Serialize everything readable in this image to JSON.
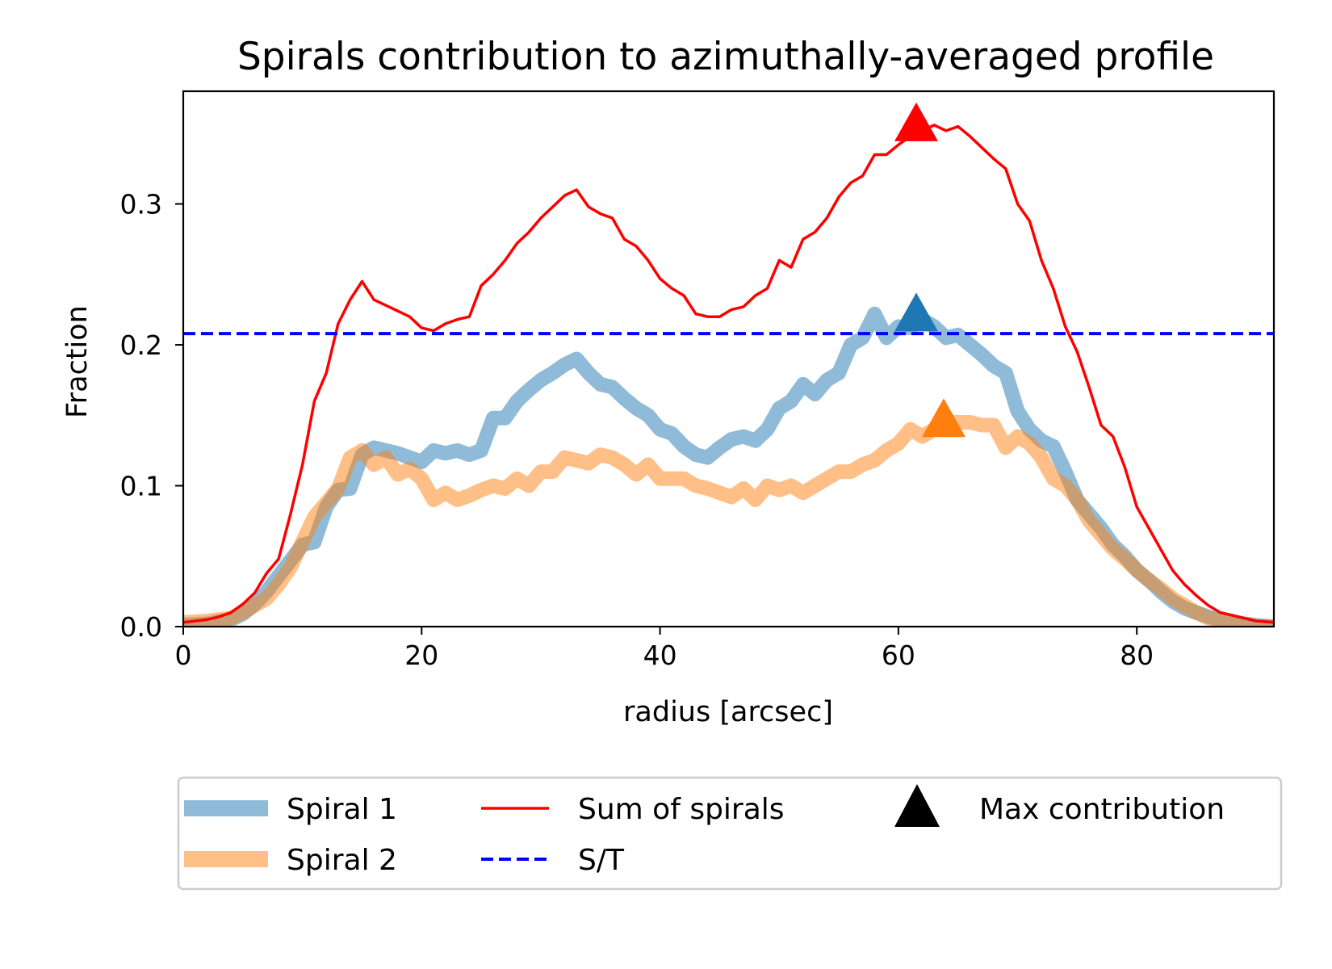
{
  "chart_data": {
    "type": "line",
    "title": "Spirals contribution to azimuthally-averaged profile",
    "xlabel": "radius [arcsec]",
    "ylabel": "Fraction",
    "xlim": [
      0,
      91.5
    ],
    "ylim": [
      0,
      0.38
    ],
    "xticks": [
      0,
      20,
      40,
      60,
      80
    ],
    "xtick_labels": [
      "0",
      "20",
      "40",
      "60",
      "80"
    ],
    "yticks": [
      0.0,
      0.1,
      0.2,
      0.3
    ],
    "ytick_labels": [
      "0.0",
      "0.1",
      "0.2",
      "0.3"
    ],
    "grid": false,
    "legend_position": "below plot, 3 columns",
    "series": [
      {
        "name": "Spiral 1",
        "color": "#1f77b4",
        "style": "thick-translucent",
        "x": [
          0,
          2,
          4,
          5,
          6,
          7,
          8,
          9,
          10,
          11,
          12,
          13,
          14,
          15,
          16,
          17,
          18,
          19,
          20,
          21,
          22,
          23,
          24,
          25,
          26,
          27,
          28,
          29,
          30,
          31,
          32,
          33,
          34,
          35,
          36,
          37,
          38,
          39,
          40,
          41,
          42,
          43,
          44,
          45,
          46,
          47,
          48,
          49,
          50,
          51,
          52,
          53,
          54,
          55,
          56,
          57,
          58,
          59,
          60,
          61,
          62,
          63,
          64,
          65,
          66,
          67,
          68,
          69,
          70,
          71,
          72,
          73,
          74,
          75,
          76,
          77,
          78,
          79,
          80,
          81,
          82,
          83,
          84,
          85,
          86,
          87,
          88,
          89,
          90,
          91.5
        ],
        "y": [
          0.001,
          0.002,
          0.005,
          0.009,
          0.016,
          0.025,
          0.036,
          0.047,
          0.058,
          0.06,
          0.085,
          0.097,
          0.098,
          0.122,
          0.127,
          0.125,
          0.123,
          0.12,
          0.117,
          0.125,
          0.123,
          0.125,
          0.122,
          0.125,
          0.148,
          0.148,
          0.16,
          0.168,
          0.175,
          0.18,
          0.186,
          0.19,
          0.18,
          0.172,
          0.17,
          0.162,
          0.155,
          0.15,
          0.14,
          0.137,
          0.128,
          0.122,
          0.12,
          0.127,
          0.133,
          0.135,
          0.132,
          0.14,
          0.155,
          0.16,
          0.172,
          0.165,
          0.175,
          0.18,
          0.2,
          0.205,
          0.222,
          0.205,
          0.213,
          0.212,
          0.218,
          0.213,
          0.205,
          0.207,
          0.2,
          0.193,
          0.185,
          0.18,
          0.153,
          0.14,
          0.132,
          0.128,
          0.11,
          0.09,
          0.08,
          0.07,
          0.058,
          0.05,
          0.04,
          0.033,
          0.025,
          0.018,
          0.013,
          0.01,
          0.007,
          0.005,
          0.003,
          0.002,
          0.001,
          0.0
        ]
      },
      {
        "name": "Spiral 2",
        "color": "#ff7f0e",
        "style": "thick-translucent",
        "x": [
          0,
          2,
          4,
          5,
          6,
          7,
          8,
          9,
          10,
          11,
          12,
          13,
          14,
          15,
          16,
          17,
          18,
          19,
          20,
          21,
          22,
          23,
          24,
          25,
          26,
          27,
          28,
          29,
          30,
          31,
          32,
          33,
          34,
          35,
          36,
          37,
          38,
          39,
          40,
          41,
          42,
          43,
          44,
          45,
          46,
          47,
          48,
          49,
          50,
          51,
          52,
          53,
          54,
          55,
          56,
          57,
          58,
          59,
          60,
          61,
          62,
          63,
          64,
          65,
          66,
          67,
          68,
          69,
          70,
          71,
          72,
          73,
          74,
          75,
          76,
          77,
          78,
          79,
          80,
          81,
          82,
          83,
          84,
          85,
          86,
          87,
          88,
          89,
          90,
          91.5
        ],
        "y": [
          0.003,
          0.004,
          0.006,
          0.01,
          0.015,
          0.02,
          0.03,
          0.042,
          0.06,
          0.078,
          0.088,
          0.098,
          0.12,
          0.125,
          0.115,
          0.12,
          0.108,
          0.112,
          0.105,
          0.09,
          0.095,
          0.09,
          0.093,
          0.097,
          0.1,
          0.098,
          0.105,
          0.1,
          0.11,
          0.11,
          0.12,
          0.118,
          0.116,
          0.122,
          0.12,
          0.115,
          0.108,
          0.115,
          0.105,
          0.105,
          0.105,
          0.1,
          0.098,
          0.095,
          0.092,
          0.098,
          0.09,
          0.1,
          0.097,
          0.1,
          0.095,
          0.1,
          0.105,
          0.11,
          0.11,
          0.115,
          0.118,
          0.125,
          0.13,
          0.14,
          0.135,
          0.14,
          0.145,
          0.145,
          0.145,
          0.143,
          0.143,
          0.127,
          0.135,
          0.13,
          0.12,
          0.105,
          0.1,
          0.09,
          0.075,
          0.065,
          0.055,
          0.048,
          0.04,
          0.033,
          0.027,
          0.02,
          0.015,
          0.01,
          0.006,
          0.004,
          0.002,
          0.001,
          0.0,
          0.0
        ]
      },
      {
        "name": "Sum of spirals",
        "color": "#ff0000",
        "style": "solid",
        "x": [
          0,
          2,
          3,
          4,
          5,
          6,
          7,
          8,
          9,
          10,
          11,
          12,
          13,
          14,
          15,
          16,
          17,
          18,
          19,
          20,
          21,
          22,
          23,
          24,
          25,
          26,
          27,
          28,
          29,
          30,
          31,
          32,
          33,
          34,
          35,
          36,
          37,
          38,
          39,
          40,
          41,
          42,
          43,
          44,
          45,
          46,
          47,
          48,
          49,
          50,
          51,
          52,
          53,
          54,
          55,
          56,
          57,
          58,
          59,
          60,
          61,
          62,
          63,
          64,
          65,
          66,
          67,
          68,
          69,
          70,
          71,
          72,
          73,
          74,
          75,
          76,
          77,
          78,
          79,
          80,
          81,
          82,
          83,
          84,
          85,
          86,
          87,
          88,
          89,
          90,
          91.5
        ],
        "y": [
          0.003,
          0.005,
          0.007,
          0.01,
          0.016,
          0.024,
          0.038,
          0.048,
          0.08,
          0.115,
          0.16,
          0.18,
          0.215,
          0.232,
          0.245,
          0.232,
          0.228,
          0.224,
          0.22,
          0.212,
          0.21,
          0.215,
          0.218,
          0.22,
          0.242,
          0.25,
          0.26,
          0.272,
          0.28,
          0.29,
          0.298,
          0.306,
          0.31,
          0.298,
          0.293,
          0.29,
          0.275,
          0.27,
          0.26,
          0.247,
          0.24,
          0.235,
          0.222,
          0.22,
          0.22,
          0.225,
          0.227,
          0.235,
          0.24,
          0.26,
          0.255,
          0.275,
          0.28,
          0.29,
          0.305,
          0.315,
          0.32,
          0.335,
          0.335,
          0.342,
          0.348,
          0.352,
          0.356,
          0.352,
          0.355,
          0.348,
          0.34,
          0.332,
          0.325,
          0.3,
          0.288,
          0.26,
          0.24,
          0.213,
          0.195,
          0.17,
          0.143,
          0.135,
          0.113,
          0.085,
          0.07,
          0.055,
          0.04,
          0.03,
          0.022,
          0.015,
          0.01,
          0.008,
          0.006,
          0.004,
          0.003
        ]
      },
      {
        "name": "S/T",
        "color": "#0000ff",
        "style": "dashed",
        "y_constant": 0.208
      }
    ],
    "markers": [
      {
        "series": "Sum of spirals",
        "x": 61.5,
        "y": 0.355,
        "color": "#ff0000"
      },
      {
        "series": "Spiral 1",
        "x": 61.5,
        "y": 0.22,
        "color": "#1f77b4"
      },
      {
        "series": "Spiral 2",
        "x": 63.8,
        "y": 0.145,
        "color": "#ff7f0e"
      }
    ],
    "legend": [
      {
        "label": "Spiral 1",
        "kind": "thick-line",
        "color": "#1f77b4"
      },
      {
        "label": "Spiral 2",
        "kind": "thick-line",
        "color": "#ff7f0e"
      },
      {
        "label": "Sum of spirals",
        "kind": "line",
        "color": "#ff0000"
      },
      {
        "label": "S/T",
        "kind": "dashed-line",
        "color": "#0000ff"
      },
      {
        "label": "Max contribution",
        "kind": "triangle-marker",
        "color": "#000000"
      }
    ]
  }
}
